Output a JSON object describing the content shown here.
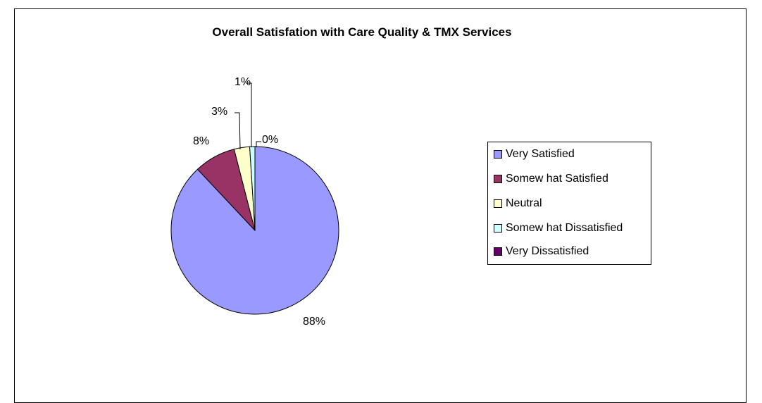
{
  "chart_data": {
    "type": "pie",
    "title": "Overall Satisfation with Care Quality & TMX Services",
    "slices": [
      {
        "name": "Very Satisfied",
        "value": 88,
        "label": "88%",
        "color": "#9999ff"
      },
      {
        "name": "Somew hat Satisfied",
        "value": 8,
        "label": "8%",
        "color": "#993366"
      },
      {
        "name": "Neutral",
        "value": 3,
        "label": "3%",
        "color": "#ffffcc"
      },
      {
        "name": "Somew hat Dissatisfied",
        "value": 1,
        "label": "1%",
        "color": "#ccffff"
      },
      {
        "name": "Very Dissatisfied",
        "value": 0,
        "label": "0%",
        "color": "#660066"
      }
    ],
    "legend_position": "right"
  }
}
